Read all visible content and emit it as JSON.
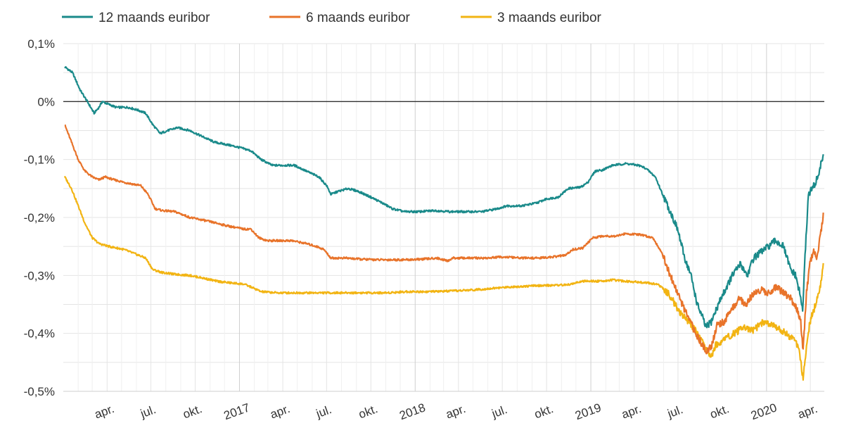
{
  "chart_data": {
    "type": "line",
    "title": "",
    "xlabel": "",
    "ylabel": "",
    "legend_position": "top-left",
    "grid": true,
    "ylim": [
      -0.5,
      0.1
    ],
    "y_ticks": [
      {
        "value": 0.1,
        "label": "0,1%"
      },
      {
        "value": 0.0,
        "label": "0%"
      },
      {
        "value": -0.1,
        "label": "-0,1%"
      },
      {
        "value": -0.2,
        "label": "-0,2%"
      },
      {
        "value": -0.3,
        "label": "-0,3%"
      },
      {
        "value": -0.4,
        "label": "-0,4%"
      },
      {
        "value": -0.5,
        "label": "-0,5%"
      }
    ],
    "xlim": [
      "2016-01-01",
      "2020-04-30"
    ],
    "x_ticks": [
      {
        "date": "2016-04-01",
        "label": "apr.",
        "major": false
      },
      {
        "date": "2016-07-01",
        "label": "jul.",
        "major": false
      },
      {
        "date": "2016-10-01",
        "label": "okt.",
        "major": false
      },
      {
        "date": "2017-01-01",
        "label": "2017",
        "major": true
      },
      {
        "date": "2017-04-01",
        "label": "apr.",
        "major": false
      },
      {
        "date": "2017-07-01",
        "label": "jul.",
        "major": false
      },
      {
        "date": "2017-10-01",
        "label": "okt.",
        "major": false
      },
      {
        "date": "2018-01-01",
        "label": "2018",
        "major": true
      },
      {
        "date": "2018-04-01",
        "label": "apr.",
        "major": false
      },
      {
        "date": "2018-07-01",
        "label": "jul.",
        "major": false
      },
      {
        "date": "2018-10-01",
        "label": "okt.",
        "major": false
      },
      {
        "date": "2019-01-01",
        "label": "2019",
        "major": true
      },
      {
        "date": "2019-04-01",
        "label": "apr.",
        "major": false
      },
      {
        "date": "2019-07-01",
        "label": "jul.",
        "major": false
      },
      {
        "date": "2019-10-01",
        "label": "okt.",
        "major": false
      },
      {
        "date": "2020-01-01",
        "label": "2020",
        "major": true
      },
      {
        "date": "2020-04-01",
        "label": "apr.",
        "major": false
      }
    ],
    "series": [
      {
        "name": "12 maands euribor",
        "color": "#1a8a8a",
        "points": [
          [
            "2016-01-04",
            0.06
          ],
          [
            "2016-01-20",
            0.05
          ],
          [
            "2016-02-05",
            0.02
          ],
          [
            "2016-02-20",
            0.0
          ],
          [
            "2016-03-05",
            -0.02
          ],
          [
            "2016-03-15",
            -0.01
          ],
          [
            "2016-03-22",
            0.0
          ],
          [
            "2016-04-05",
            -0.005
          ],
          [
            "2016-04-20",
            -0.01
          ],
          [
            "2016-05-15",
            -0.01
          ],
          [
            "2016-06-05",
            -0.015
          ],
          [
            "2016-06-20",
            -0.02
          ],
          [
            "2016-07-05",
            -0.04
          ],
          [
            "2016-07-20",
            -0.055
          ],
          [
            "2016-08-05",
            -0.05
          ],
          [
            "2016-08-25",
            -0.045
          ],
          [
            "2016-09-20",
            -0.05
          ],
          [
            "2016-10-15",
            -0.06
          ],
          [
            "2016-11-10",
            -0.07
          ],
          [
            "2016-12-10",
            -0.075
          ],
          [
            "2017-01-05",
            -0.08
          ],
          [
            "2017-01-25",
            -0.085
          ],
          [
            "2017-02-15",
            -0.1
          ],
          [
            "2017-03-10",
            -0.11
          ],
          [
            "2017-04-01",
            -0.11
          ],
          [
            "2017-04-25",
            -0.11
          ],
          [
            "2017-05-20",
            -0.12
          ],
          [
            "2017-06-15",
            -0.13
          ],
          [
            "2017-07-01",
            -0.145
          ],
          [
            "2017-07-10",
            -0.16
          ],
          [
            "2017-07-25",
            -0.155
          ],
          [
            "2017-08-15",
            -0.15
          ],
          [
            "2017-09-05",
            -0.155
          ],
          [
            "2017-10-01",
            -0.165
          ],
          [
            "2017-10-25",
            -0.175
          ],
          [
            "2017-11-15",
            -0.185
          ],
          [
            "2017-12-10",
            -0.19
          ],
          [
            "2018-01-10",
            -0.19
          ],
          [
            "2018-02-10",
            -0.188
          ],
          [
            "2018-03-15",
            -0.19
          ],
          [
            "2018-04-15",
            -0.19
          ],
          [
            "2018-05-20",
            -0.19
          ],
          [
            "2018-06-20",
            -0.185
          ],
          [
            "2018-07-10",
            -0.18
          ],
          [
            "2018-08-10",
            -0.18
          ],
          [
            "2018-09-10",
            -0.175
          ],
          [
            "2018-10-01",
            -0.168
          ],
          [
            "2018-10-25",
            -0.165
          ],
          [
            "2018-11-15",
            -0.15
          ],
          [
            "2018-12-10",
            -0.148
          ],
          [
            "2018-12-25",
            -0.14
          ],
          [
            "2019-01-10",
            -0.12
          ],
          [
            "2019-01-25",
            -0.118
          ],
          [
            "2019-02-15",
            -0.11
          ],
          [
            "2019-03-15",
            -0.107
          ],
          [
            "2019-04-10",
            -0.11
          ],
          [
            "2019-04-25",
            -0.115
          ],
          [
            "2019-05-15",
            -0.13
          ],
          [
            "2019-05-30",
            -0.16
          ],
          [
            "2019-06-15",
            -0.19
          ],
          [
            "2019-06-30",
            -0.22
          ],
          [
            "2019-07-15",
            -0.27
          ],
          [
            "2019-07-28",
            -0.3
          ],
          [
            "2019-08-10",
            -0.35
          ],
          [
            "2019-08-20",
            -0.37
          ],
          [
            "2019-08-28",
            -0.39
          ],
          [
            "2019-09-08",
            -0.38
          ],
          [
            "2019-09-18",
            -0.36
          ],
          [
            "2019-09-28",
            -0.34
          ],
          [
            "2019-10-10",
            -0.32
          ],
          [
            "2019-10-22",
            -0.3
          ],
          [
            "2019-11-08",
            -0.28
          ],
          [
            "2019-11-22",
            -0.3
          ],
          [
            "2019-12-05",
            -0.27
          ],
          [
            "2019-12-20",
            -0.26
          ],
          [
            "2020-01-05",
            -0.25
          ],
          [
            "2020-01-20",
            -0.24
          ],
          [
            "2020-02-05",
            -0.25
          ],
          [
            "2020-02-20",
            -0.29
          ],
          [
            "2020-03-01",
            -0.3
          ],
          [
            "2020-03-10",
            -0.33
          ],
          [
            "2020-03-16",
            -0.36
          ],
          [
            "2020-03-22",
            -0.25
          ],
          [
            "2020-03-28",
            -0.16
          ],
          [
            "2020-04-05",
            -0.15
          ],
          [
            "2020-04-12",
            -0.14
          ],
          [
            "2020-04-20",
            -0.12
          ],
          [
            "2020-04-28",
            -0.09
          ]
        ]
      },
      {
        "name": "6 maands euribor",
        "color": "#e8732a",
        "points": [
          [
            "2016-01-04",
            -0.04
          ],
          [
            "2016-01-18",
            -0.07
          ],
          [
            "2016-02-01",
            -0.1
          ],
          [
            "2016-02-15",
            -0.12
          ],
          [
            "2016-03-01",
            -0.13
          ],
          [
            "2016-03-15",
            -0.135
          ],
          [
            "2016-03-28",
            -0.13
          ],
          [
            "2016-04-15",
            -0.135
          ],
          [
            "2016-05-10",
            -0.14
          ],
          [
            "2016-06-10",
            -0.145
          ],
          [
            "2016-06-25",
            -0.16
          ],
          [
            "2016-07-10",
            -0.185
          ],
          [
            "2016-07-25",
            -0.188
          ],
          [
            "2016-08-20",
            -0.19
          ],
          [
            "2016-09-20",
            -0.2
          ],
          [
            "2016-10-20",
            -0.205
          ],
          [
            "2016-11-15",
            -0.21
          ],
          [
            "2016-12-10",
            -0.215
          ],
          [
            "2017-01-10",
            -0.22
          ],
          [
            "2017-01-25",
            -0.22
          ],
          [
            "2017-02-10",
            -0.235
          ],
          [
            "2017-02-28",
            -0.24
          ],
          [
            "2017-03-20",
            -0.24
          ],
          [
            "2017-04-20",
            -0.24
          ],
          [
            "2017-05-20",
            -0.245
          ],
          [
            "2017-06-10",
            -0.25
          ],
          [
            "2017-06-25",
            -0.255
          ],
          [
            "2017-07-10",
            -0.27
          ],
          [
            "2017-08-10",
            -0.27
          ],
          [
            "2017-09-10",
            -0.272
          ],
          [
            "2017-10-15",
            -0.273
          ],
          [
            "2017-11-15",
            -0.273
          ],
          [
            "2017-12-15",
            -0.273
          ],
          [
            "2018-01-15",
            -0.272
          ],
          [
            "2018-02-15",
            -0.27
          ],
          [
            "2018-03-10",
            -0.275
          ],
          [
            "2018-03-20",
            -0.27
          ],
          [
            "2018-04-20",
            -0.27
          ],
          [
            "2018-06-01",
            -0.27
          ],
          [
            "2018-07-01",
            -0.268
          ],
          [
            "2018-08-10",
            -0.27
          ],
          [
            "2018-09-15",
            -0.27
          ],
          [
            "2018-10-15",
            -0.268
          ],
          [
            "2018-11-10",
            -0.265
          ],
          [
            "2018-11-25",
            -0.255
          ],
          [
            "2018-12-15",
            -0.253
          ],
          [
            "2019-01-05",
            -0.235
          ],
          [
            "2019-01-25",
            -0.232
          ],
          [
            "2019-02-20",
            -0.232
          ],
          [
            "2019-03-15",
            -0.228
          ],
          [
            "2019-04-15",
            -0.23
          ],
          [
            "2019-05-10",
            -0.235
          ],
          [
            "2019-05-28",
            -0.26
          ],
          [
            "2019-06-15",
            -0.3
          ],
          [
            "2019-06-30",
            -0.33
          ],
          [
            "2019-07-15",
            -0.36
          ],
          [
            "2019-08-01",
            -0.39
          ],
          [
            "2019-08-20",
            -0.42
          ],
          [
            "2019-08-30",
            -0.43
          ],
          [
            "2019-09-10",
            -0.42
          ],
          [
            "2019-09-20",
            -0.385
          ],
          [
            "2019-10-05",
            -0.38
          ],
          [
            "2019-10-20",
            -0.36
          ],
          [
            "2019-11-05",
            -0.34
          ],
          [
            "2019-11-20",
            -0.35
          ],
          [
            "2019-12-05",
            -0.33
          ],
          [
            "2019-12-20",
            -0.325
          ],
          [
            "2020-01-05",
            -0.33
          ],
          [
            "2020-01-20",
            -0.32
          ],
          [
            "2020-02-05",
            -0.33
          ],
          [
            "2020-02-20",
            -0.34
          ],
          [
            "2020-03-05",
            -0.36
          ],
          [
            "2020-03-12",
            -0.38
          ],
          [
            "2020-03-17",
            -0.43
          ],
          [
            "2020-03-24",
            -0.33
          ],
          [
            "2020-03-31",
            -0.28
          ],
          [
            "2020-04-08",
            -0.26
          ],
          [
            "2020-04-15",
            -0.27
          ],
          [
            "2020-04-22",
            -0.23
          ],
          [
            "2020-04-28",
            -0.195
          ]
        ]
      },
      {
        "name": "3 maands euribor",
        "color": "#f2b413",
        "points": [
          [
            "2016-01-04",
            -0.13
          ],
          [
            "2016-01-18",
            -0.15
          ],
          [
            "2016-02-01",
            -0.18
          ],
          [
            "2016-02-15",
            -0.21
          ],
          [
            "2016-03-01",
            -0.235
          ],
          [
            "2016-03-15",
            -0.245
          ],
          [
            "2016-04-05",
            -0.25
          ],
          [
            "2016-05-05",
            -0.255
          ],
          [
            "2016-06-05",
            -0.265
          ],
          [
            "2016-06-20",
            -0.27
          ],
          [
            "2016-07-05",
            -0.29
          ],
          [
            "2016-07-25",
            -0.295
          ],
          [
            "2016-08-20",
            -0.298
          ],
          [
            "2016-09-20",
            -0.3
          ],
          [
            "2016-10-20",
            -0.305
          ],
          [
            "2016-11-15",
            -0.31
          ],
          [
            "2016-12-15",
            -0.313
          ],
          [
            "2017-01-10",
            -0.315
          ],
          [
            "2017-01-25",
            -0.32
          ],
          [
            "2017-02-15",
            -0.328
          ],
          [
            "2017-03-20",
            -0.33
          ],
          [
            "2017-05-01",
            -0.33
          ],
          [
            "2017-06-15",
            -0.33
          ],
          [
            "2017-08-01",
            -0.33
          ],
          [
            "2017-09-15",
            -0.33
          ],
          [
            "2017-11-01",
            -0.33
          ],
          [
            "2017-12-15",
            -0.328
          ],
          [
            "2018-02-01",
            -0.328
          ],
          [
            "2018-03-15",
            -0.327
          ],
          [
            "2018-05-01",
            -0.325
          ],
          [
            "2018-06-15",
            -0.322
          ],
          [
            "2018-07-15",
            -0.32
          ],
          [
            "2018-09-01",
            -0.318
          ],
          [
            "2018-10-15",
            -0.317
          ],
          [
            "2018-11-15",
            -0.316
          ],
          [
            "2018-12-15",
            -0.31
          ],
          [
            "2019-01-15",
            -0.31
          ],
          [
            "2019-02-15",
            -0.308
          ],
          [
            "2019-03-15",
            -0.31
          ],
          [
            "2019-04-20",
            -0.312
          ],
          [
            "2019-05-20",
            -0.315
          ],
          [
            "2019-06-10",
            -0.33
          ],
          [
            "2019-06-25",
            -0.35
          ],
          [
            "2019-07-10",
            -0.37
          ],
          [
            "2019-07-25",
            -0.38
          ],
          [
            "2019-08-10",
            -0.4
          ],
          [
            "2019-08-25",
            -0.42
          ],
          [
            "2019-09-08",
            -0.44
          ],
          [
            "2019-09-18",
            -0.42
          ],
          [
            "2019-10-05",
            -0.41
          ],
          [
            "2019-10-25",
            -0.4
          ],
          [
            "2019-11-15",
            -0.39
          ],
          [
            "2019-12-05",
            -0.395
          ],
          [
            "2019-12-25",
            -0.38
          ],
          [
            "2020-01-10",
            -0.385
          ],
          [
            "2020-01-25",
            -0.39
          ],
          [
            "2020-02-10",
            -0.4
          ],
          [
            "2020-02-25",
            -0.41
          ],
          [
            "2020-03-05",
            -0.42
          ],
          [
            "2020-03-10",
            -0.435
          ],
          [
            "2020-03-17",
            -0.48
          ],
          [
            "2020-03-24",
            -0.42
          ],
          [
            "2020-03-31",
            -0.38
          ],
          [
            "2020-04-08",
            -0.36
          ],
          [
            "2020-04-16",
            -0.34
          ],
          [
            "2020-04-22",
            -0.32
          ],
          [
            "2020-04-28",
            -0.28
          ]
        ]
      }
    ]
  }
}
